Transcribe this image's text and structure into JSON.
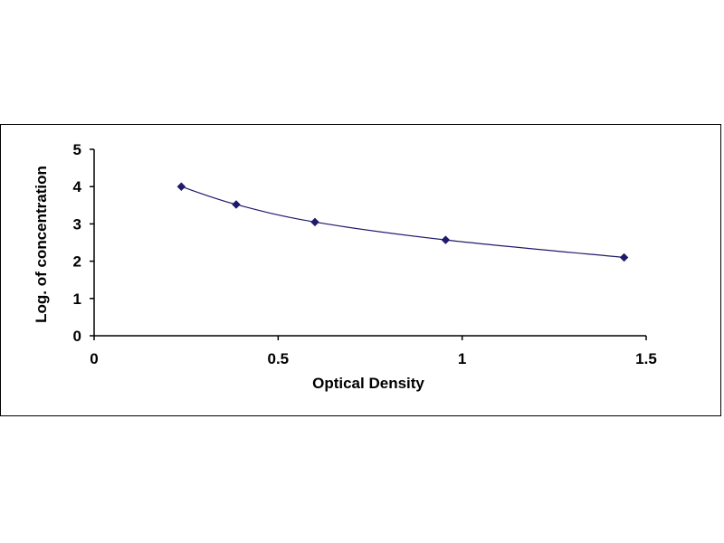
{
  "chart_data": {
    "type": "scatter",
    "title": "",
    "xlabel": "Optical Density",
    "ylabel": "Log. of concentration",
    "xlim": [
      0,
      1.5
    ],
    "ylim": [
      0,
      5
    ],
    "x_ticks": [
      0,
      0.5,
      1,
      1.5
    ],
    "x_tick_labels": [
      "0",
      "0.5",
      "1",
      "1.5"
    ],
    "y_ticks": [
      0,
      1,
      2,
      3,
      4,
      5
    ],
    "y_tick_labels": [
      "0",
      "1",
      "2",
      "3",
      "4",
      "5"
    ],
    "grid": false,
    "legend": "none",
    "series": [
      {
        "x": [
          0.237,
          0.386,
          0.6,
          0.955,
          1.44
        ],
        "y": [
          4.0,
          3.52,
          3.05,
          2.57,
          2.1
        ],
        "marker": "diamond",
        "color": "#1f1a6b",
        "trendline": true
      }
    ]
  }
}
